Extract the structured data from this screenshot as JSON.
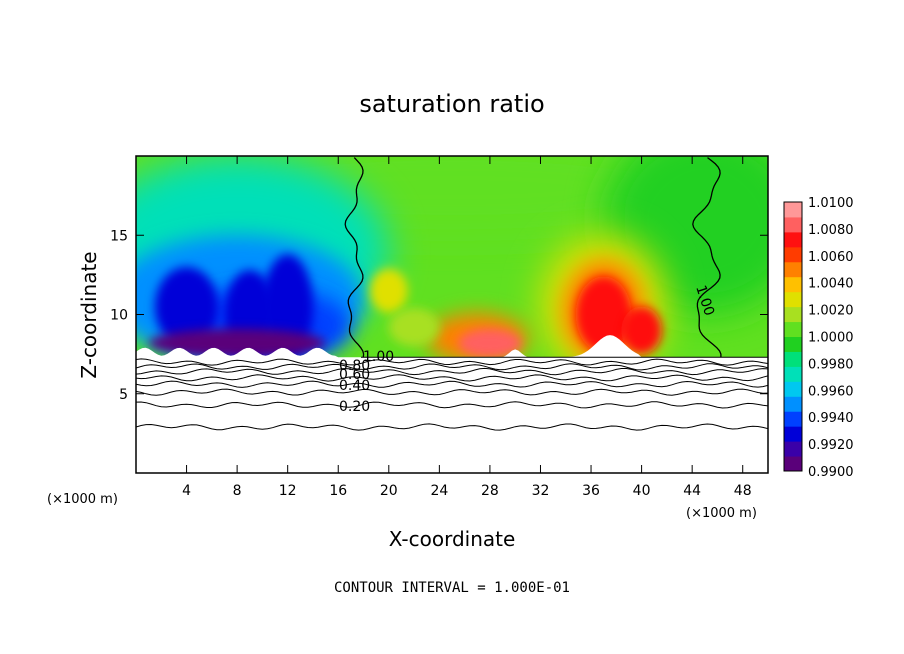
{
  "chart_data": {
    "type": "heatmap",
    "title": "saturation ratio",
    "xlabel": "X-coordinate",
    "ylabel": "Z-coordinate",
    "x_unit": "(×1000 m)",
    "y_unit": "(×1000 m)",
    "xlim": [
      0,
      50
    ],
    "ylim": [
      0,
      20
    ],
    "x_ticks": [
      "4",
      "8",
      "12",
      "16",
      "20",
      "24",
      "28",
      "32",
      "36",
      "40",
      "44",
      "48"
    ],
    "x_tick_values": [
      4,
      8,
      12,
      16,
      20,
      24,
      28,
      32,
      36,
      40,
      44,
      48
    ],
    "y_ticks": [
      "5",
      "10",
      "15"
    ],
    "y_tick_values": [
      5,
      10,
      15
    ],
    "colorbar": {
      "min": 0.99,
      "max": 1.01,
      "labels": [
        "1.0100",
        "1.0080",
        "1.0060",
        "1.0040",
        "1.0020",
        "1.0000",
        "0.9980",
        "0.9960",
        "0.9940",
        "0.9920",
        "0.9900"
      ],
      "label_values": [
        1.01,
        1.008,
        1.006,
        1.004,
        1.002,
        1.0,
        0.998,
        0.996,
        0.994,
        0.992,
        0.99
      ],
      "colors": [
        "#5a007a",
        "#3a00a8",
        "#0000d8",
        "#0040ff",
        "#0090ff",
        "#00c8f0",
        "#00e0b8",
        "#00e07a",
        "#20d020",
        "#60e020",
        "#a8e020",
        "#e0e000",
        "#ffc000",
        "#ff8000",
        "#ff3c00",
        "#ff1010",
        "#ff6060",
        "#ff9898"
      ]
    },
    "contour_labels": [
      {
        "text": "1.00",
        "value": 1.0
      },
      {
        "text": "1.00",
        "value": 1.0
      },
      {
        "text": "0.80",
        "value": 0.8
      },
      {
        "text": "0.60",
        "value": 0.6
      },
      {
        "text": "0.40",
        "value": 0.4
      },
      {
        "text": "0.20",
        "value": 0.2
      }
    ],
    "contour_interval": "CONTOUR INTERVAL = 1.000E-01",
    "saturated_layer_top_km": 7.3,
    "contour_levels_km": [
      2.9,
      4.3,
      5.1,
      5.6,
      6.0,
      6.4,
      6.7,
      7.0
    ],
    "features": [
      {
        "name": "subsaturated plumes",
        "x_km": [
          2,
          16
        ],
        "z_km": [
          7.3,
          15
        ],
        "min": 0.99
      },
      {
        "name": "supersaturated plume",
        "x_km": [
          33,
          41
        ],
        "z_km": [
          7.3,
          13
        ],
        "max": 1.01
      },
      {
        "name": "supersaturated arc",
        "x_km": [
          24,
          30
        ],
        "z_km": [
          7.3,
          10
        ],
        "max": 1.007
      },
      {
        "name": "moist patch",
        "x_km": [
          19,
          21
        ],
        "z_km": [
          10,
          12.5
        ],
        "max": 1.003
      }
    ]
  }
}
